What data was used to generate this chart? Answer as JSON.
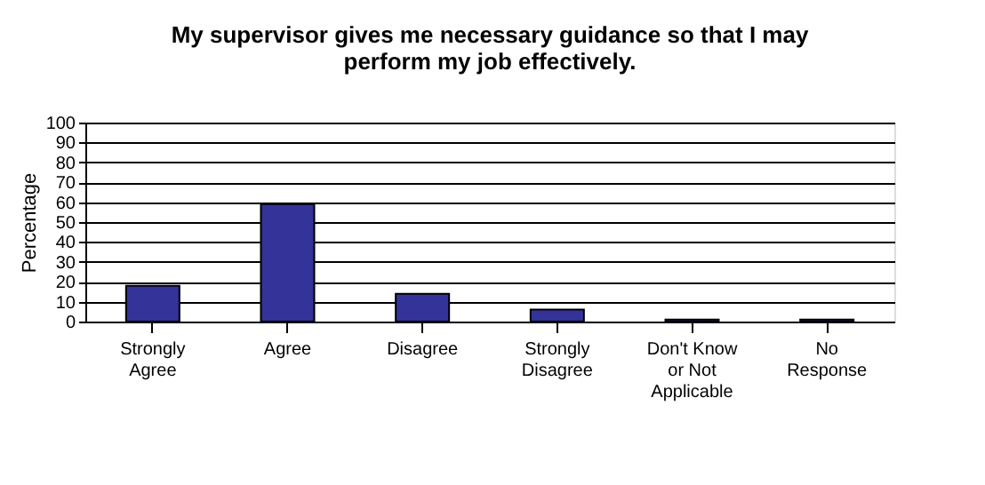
{
  "chart_data": {
    "type": "bar",
    "title": "My supervisor gives me necessary guidance so that I may\nperform my job effectively.",
    "ylabel": "Percentage",
    "categories": [
      "Strongly\nAgree",
      "Agree",
      "Disagree",
      "Strongly\nDisagree",
      "Don't Know\nor Not\nApplicable",
      "No\nResponse"
    ],
    "values": [
      18,
      59,
      14,
      6,
      1,
      1
    ],
    "color": "#333399",
    "ylim": [
      0,
      100
    ],
    "yticks": [
      0,
      10,
      20,
      30,
      40,
      50,
      60,
      70,
      80,
      90,
      100
    ],
    "grid": "y"
  }
}
